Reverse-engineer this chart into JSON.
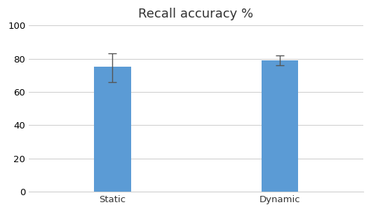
{
  "categories": [
    "Static",
    "Dynamic"
  ],
  "values": [
    75,
    79
  ],
  "errors_upper": [
    8,
    3
  ],
  "errors_lower": [
    9,
    3
  ],
  "bar_color": "#5B9BD5",
  "title": "Recall accuracy %",
  "title_fontsize": 13,
  "ylim": [
    0,
    100
  ],
  "yticks": [
    0,
    20,
    40,
    60,
    80,
    100
  ],
  "bar_width": 0.22,
  "background_color": "#ffffff",
  "grid_color": "#d0d0d0",
  "tick_label_fontsize": 9.5,
  "error_color": "#555555",
  "error_capsize": 4,
  "error_linewidth": 1.0
}
